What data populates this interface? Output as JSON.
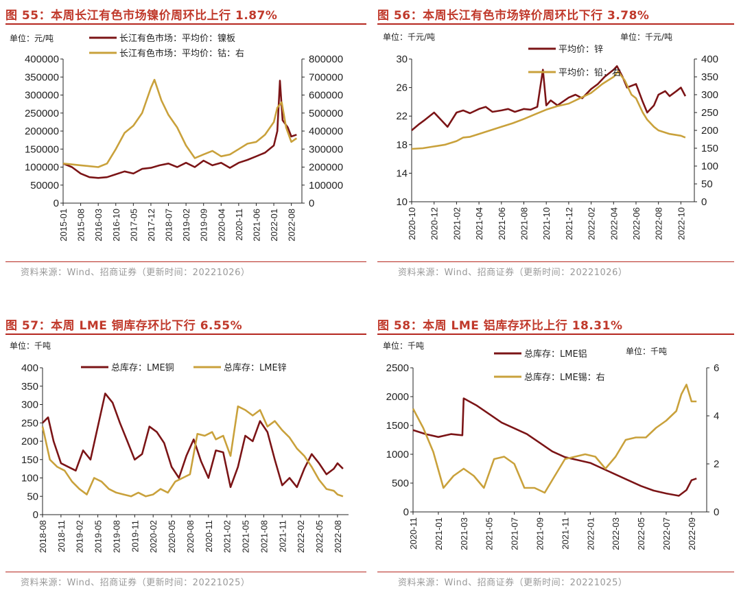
{
  "page": {
    "source_label_color": "#999999",
    "title_color": "#c0392b"
  },
  "chart_data": [
    {
      "type": "line",
      "title": "图 55：本周长江有色市场镍价周环比上行 1.87%",
      "unit_left": "单位：元/吨",
      "source": "资料来源：Wind、招商证券（更新时间：20221026）",
      "x_ticks": [
        "2015-01",
        "2015-08",
        "2016-03",
        "2016-10",
        "2017-05",
        "2017-12",
        "2018-07",
        "2019-02",
        "2019-09",
        "2020-04",
        "2020-11",
        "2021-06",
        "2022-01",
        "2022-08"
      ],
      "y_left": {
        "min": 0,
        "max": 400000,
        "ticks": [
          "0",
          "50000",
          "100000",
          "150000",
          "200000",
          "250000",
          "300000",
          "350000",
          "400000"
        ]
      },
      "y_right": {
        "min": 0,
        "max": 800000,
        "ticks": [
          "0",
          "100000",
          "200000",
          "300000",
          "400000",
          "500000",
          "600000",
          "700000",
          "800000"
        ]
      },
      "series": [
        {
          "name": "长江有色市场：平均价：镍板",
          "axis": "left",
          "color": "#7b1416",
          "x": [
            0,
            0.5,
            1,
            1.5,
            2,
            2.5,
            3,
            3.5,
            4,
            4.5,
            5,
            5.5,
            6,
            6.5,
            7,
            7.5,
            8,
            8.5,
            9,
            9.5,
            10,
            10.5,
            11,
            11.5,
            12,
            12.2,
            12.35,
            12.5,
            12.8,
            13,
            13.3
          ],
          "values": [
            110000,
            100000,
            82000,
            72000,
            70000,
            72000,
            80000,
            88000,
            82000,
            95000,
            98000,
            105000,
            110000,
            100000,
            112000,
            100000,
            118000,
            105000,
            112000,
            98000,
            112000,
            120000,
            130000,
            140000,
            160000,
            200000,
            340000,
            230000,
            210000,
            185000,
            190000
          ]
        },
        {
          "name": "长江有色市场：平均价：钴：右",
          "axis": "right",
          "color": "#c9a13b",
          "x": [
            0,
            0.5,
            1,
            1.5,
            2,
            2.5,
            3,
            3.5,
            4,
            4.5,
            5,
            5.2,
            5.6,
            6,
            6.5,
            7,
            7.5,
            8,
            8.5,
            9,
            9.5,
            10,
            10.5,
            11,
            11.5,
            12,
            12.2,
            12.45,
            12.7,
            13,
            13.3
          ],
          "values": [
            220000,
            215000,
            210000,
            205000,
            200000,
            220000,
            300000,
            390000,
            430000,
            500000,
            640000,
            685000,
            570000,
            490000,
            420000,
            320000,
            250000,
            270000,
            290000,
            260000,
            270000,
            300000,
            330000,
            340000,
            380000,
            450000,
            530000,
            560000,
            420000,
            340000,
            360000
          ]
        }
      ]
    },
    {
      "type": "line",
      "title": "图 56：本周长江有色市场锌价周环比下行 3.78%",
      "unit_left": "单位：千元/吨",
      "unit_right": "单位：千元/吨",
      "source": "资料来源：Wind、招商证券（更新时间：20221026）",
      "x_ticks": [
        "2020-10",
        "2020-12",
        "2021-02",
        "2021-04",
        "2021-06",
        "2021-08",
        "2021-10",
        "2021-12",
        "2022-02",
        "2022-04",
        "2022-06",
        "2022-08",
        "2022-10"
      ],
      "y_left": {
        "min": 10,
        "max": 30,
        "ticks": [
          "10",
          "14",
          "18",
          "22",
          "26",
          "30"
        ]
      },
      "y_right": {
        "min": 0,
        "max": 400,
        "ticks": [
          "0",
          "50",
          "100",
          "150",
          "200",
          "250",
          "300",
          "350",
          "400"
        ]
      },
      "series": [
        {
          "name": "平均价：锌",
          "axis": "left",
          "color": "#7b1416",
          "x": [
            0,
            0.3,
            0.6,
            1,
            1.3,
            1.6,
            2,
            2.3,
            2.6,
            3,
            3.3,
            3.6,
            4,
            4.3,
            4.6,
            5,
            5.3,
            5.6,
            5.85,
            6,
            6.2,
            6.5,
            7,
            7.3,
            7.6,
            8,
            8.3,
            8.6,
            9,
            9.15,
            9.4,
            9.6,
            10,
            10.3,
            10.5,
            10.8,
            11,
            11.3,
            11.5,
            11.8,
            12,
            12.2
          ],
          "values": [
            20,
            20.8,
            21.5,
            22.5,
            21.5,
            20.5,
            22.5,
            22.8,
            22.4,
            23,
            23.3,
            22.6,
            22.8,
            23,
            22.6,
            23,
            22.9,
            23.3,
            28.5,
            23.5,
            24.2,
            23.5,
            24.6,
            25,
            24.5,
            25.8,
            26.5,
            27.5,
            28.5,
            29,
            27.5,
            26,
            26.5,
            24,
            22.5,
            23.5,
            25,
            25.5,
            24.8,
            25.5,
            26,
            24.8
          ]
        },
        {
          "name": "平均价：铅：右",
          "axis": "right",
          "color": "#c9a13b",
          "x": [
            0,
            0.5,
            1,
            1.5,
            2,
            2.3,
            2.6,
            3,
            3.5,
            4,
            4.5,
            5,
            5.5,
            6,
            6.5,
            7,
            7.5,
            8,
            8.5,
            9,
            9.2,
            9.5,
            9.8,
            10,
            10.3,
            10.5,
            10.8,
            11,
            11.5,
            12,
            12.2
          ],
          "values": [
            148,
            150,
            155,
            160,
            170,
            180,
            182,
            190,
            200,
            210,
            220,
            232,
            245,
            258,
            268,
            275,
            290,
            305,
            330,
            350,
            365,
            340,
            300,
            290,
            250,
            230,
            210,
            200,
            190,
            185,
            180
          ]
        }
      ]
    },
    {
      "type": "line",
      "title": "图 57：本周 LME 铜库存环比下行 6.55%",
      "unit_left": "单位：千吨",
      "source": "资料来源：Wind、招商证券（更新时间：20221025）",
      "x_ticks": [
        "2018-08",
        "2018-11",
        "2019-02",
        "2019-05",
        "2019-08",
        "2019-11",
        "2020-02",
        "2020-05",
        "2020-08",
        "2020-11",
        "2021-02",
        "2021-05",
        "2021-08",
        "2021-11",
        "2022-02",
        "2022-05",
        "2022-08"
      ],
      "y_left": {
        "min": 0,
        "max": 400,
        "ticks": [
          "0",
          "50",
          "100",
          "150",
          "200",
          "250",
          "300",
          "350",
          "400"
        ]
      },
      "series": [
        {
          "name": "总库存：LME铜",
          "axis": "left",
          "color": "#7b1416",
          "x": [
            0,
            0.3,
            0.6,
            1,
            1.4,
            1.8,
            2.2,
            2.6,
            3,
            3.4,
            3.8,
            4.2,
            4.6,
            5,
            5.4,
            5.8,
            6.2,
            6.6,
            7,
            7.4,
            7.8,
            8.2,
            8.6,
            9,
            9.4,
            9.8,
            10.2,
            10.6,
            11,
            11.4,
            11.8,
            12.2,
            12.6,
            13,
            13.4,
            13.8,
            14.2,
            14.6,
            15,
            15.4,
            15.8,
            16,
            16.3
          ],
          "values": [
            250,
            265,
            200,
            140,
            130,
            120,
            175,
            150,
            240,
            330,
            305,
            250,
            200,
            150,
            165,
            240,
            225,
            195,
            130,
            100,
            160,
            205,
            145,
            100,
            175,
            170,
            75,
            130,
            215,
            200,
            255,
            225,
            150,
            80,
            100,
            75,
            125,
            165,
            140,
            110,
            125,
            140,
            125
          ]
        },
        {
          "name": "总库存：LME锌",
          "axis": "left",
          "color": "#c9a13b",
          "x": [
            0,
            0.4,
            0.8,
            1.2,
            1.6,
            2,
            2.4,
            2.8,
            3.2,
            3.6,
            4,
            4.4,
            4.8,
            5.2,
            5.6,
            6,
            6.4,
            6.8,
            7.2,
            7.6,
            8,
            8.4,
            8.8,
            9.2,
            9.4,
            9.8,
            10.2,
            10.6,
            11,
            11.4,
            11.8,
            12.2,
            12.6,
            13,
            13.4,
            13.8,
            14.2,
            14.6,
            15,
            15.4,
            15.8,
            16,
            16.3
          ],
          "values": [
            240,
            150,
            130,
            120,
            90,
            70,
            55,
            100,
            90,
            70,
            60,
            55,
            50,
            60,
            50,
            55,
            70,
            60,
            90,
            100,
            110,
            220,
            215,
            225,
            205,
            215,
            160,
            295,
            285,
            270,
            285,
            240,
            255,
            230,
            210,
            180,
            160,
            130,
            95,
            70,
            65,
            55,
            50
          ]
        }
      ]
    },
    {
      "type": "line",
      "title": "图 58：本周 LME 铝库存环比上行 18.31%",
      "unit_left": "单位：千吨",
      "unit_right": "单位：千吨",
      "source": "资料来源：Wind、招商证券（更新时间：20221025）",
      "x_ticks": [
        "2020-11",
        "2021-01",
        "2021-03",
        "2021-05",
        "2021-07",
        "2021-09",
        "2021-11",
        "2022-01",
        "2022-03",
        "2022-05",
        "2022-07",
        "2022-09"
      ],
      "y_left": {
        "min": 0,
        "max": 2500,
        "ticks": [
          "0",
          "500",
          "1000",
          "1500",
          "2000",
          "2500"
        ]
      },
      "y_right": {
        "min": 0,
        "max": 6,
        "ticks": [
          "0",
          "2",
          "4",
          "6"
        ]
      },
      "series": [
        {
          "name": "总库存：LME铝",
          "axis": "left",
          "color": "#7b1416",
          "x": [
            0,
            0.5,
            1,
            1.5,
            1.95,
            2,
            2.5,
            3,
            3.5,
            4,
            4.5,
            5,
            5.5,
            6,
            6.5,
            7,
            7.5,
            8,
            8.5,
            9,
            9.5,
            10,
            10.5,
            10.8,
            11,
            11.2
          ],
          "values": [
            1420,
            1350,
            1300,
            1350,
            1330,
            1970,
            1850,
            1700,
            1550,
            1450,
            1350,
            1200,
            1050,
            950,
            900,
            850,
            750,
            650,
            550,
            450,
            370,
            320,
            280,
            380,
            550,
            580
          ]
        },
        {
          "name": "总库存：LME锡：右",
          "axis": "right",
          "color": "#c9a13b",
          "x": [
            0,
            0.4,
            0.8,
            1.2,
            1.6,
            2,
            2.4,
            2.8,
            3.2,
            3.6,
            4,
            4.4,
            4.8,
            5.2,
            5.6,
            6,
            6.4,
            6.8,
            7.2,
            7.6,
            8,
            8.4,
            8.8,
            9.2,
            9.6,
            10,
            10.4,
            10.6,
            10.8,
            11,
            11.2
          ],
          "values": [
            4.3,
            3.5,
            2.5,
            1.0,
            1.5,
            1.8,
            1.5,
            1.0,
            2.2,
            2.3,
            2.0,
            1.0,
            1.0,
            0.8,
            1.5,
            2.2,
            2.3,
            2.4,
            2.3,
            1.8,
            2.3,
            3.0,
            3.1,
            3.1,
            3.5,
            3.8,
            4.2,
            4.9,
            5.3,
            4.6,
            4.6
          ]
        }
      ]
    }
  ]
}
